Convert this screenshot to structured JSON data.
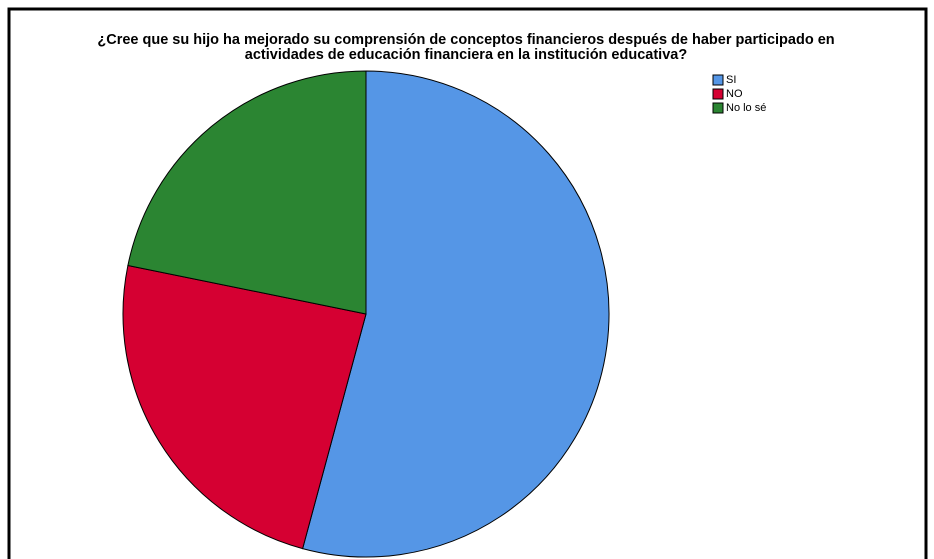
{
  "chart_data": {
    "type": "pie",
    "title": [
      "¿Cree que su hijo ha mejorado su comprensión de conceptos financieros después de haber participado en",
      "actividades de educación financiera en la institución educativa?"
    ],
    "categories": [
      "SI",
      "NO",
      "No lo sé"
    ],
    "values": [
      54.2,
      24.0,
      21.8
    ],
    "colors": [
      "#5596e6",
      "#d50032",
      "#2b8532"
    ],
    "legend": "top-right"
  }
}
